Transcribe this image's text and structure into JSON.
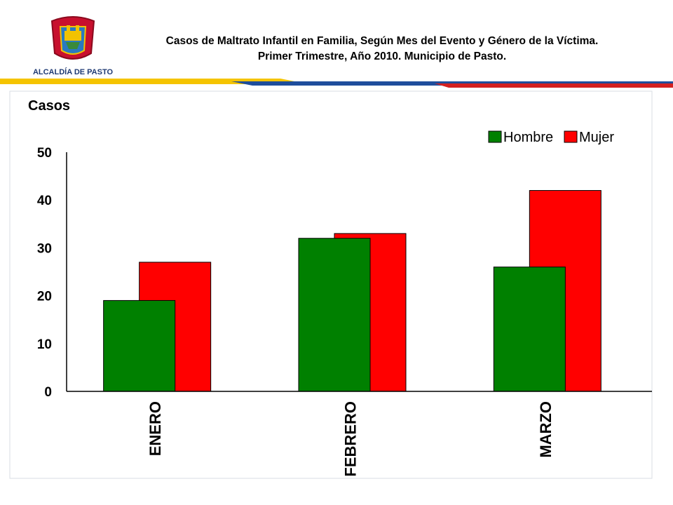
{
  "header": {
    "logo_text": "ALCALDÍA DE PASTO",
    "title_line1": "Casos de Maltrato Infantil en Familia, Según Mes del Evento y Género de la Víctima.",
    "title_line2": "Primer Trimestre, Año 2010. Municipio de Pasto."
  },
  "colors": {
    "hombre": "#008000",
    "mujer": "#ff0000",
    "banner_yellow": "#f5c400",
    "banner_blue": "#1f4e9c",
    "banner_red": "#d42020"
  },
  "chart_data": {
    "type": "bar",
    "title": "",
    "ylabel": "Casos",
    "xlabel": "",
    "categories": [
      "ENERO",
      "FEBRERO",
      "MARZO"
    ],
    "series": [
      {
        "name": "Hombre",
        "values": [
          19,
          32,
          26
        ]
      },
      {
        "name": "Mujer",
        "values": [
          27,
          33,
          42
        ]
      }
    ],
    "ylim": [
      0,
      50
    ],
    "yticks": [
      0,
      10,
      20,
      30,
      40,
      50
    ],
    "grid": false,
    "legend": "top-right"
  }
}
